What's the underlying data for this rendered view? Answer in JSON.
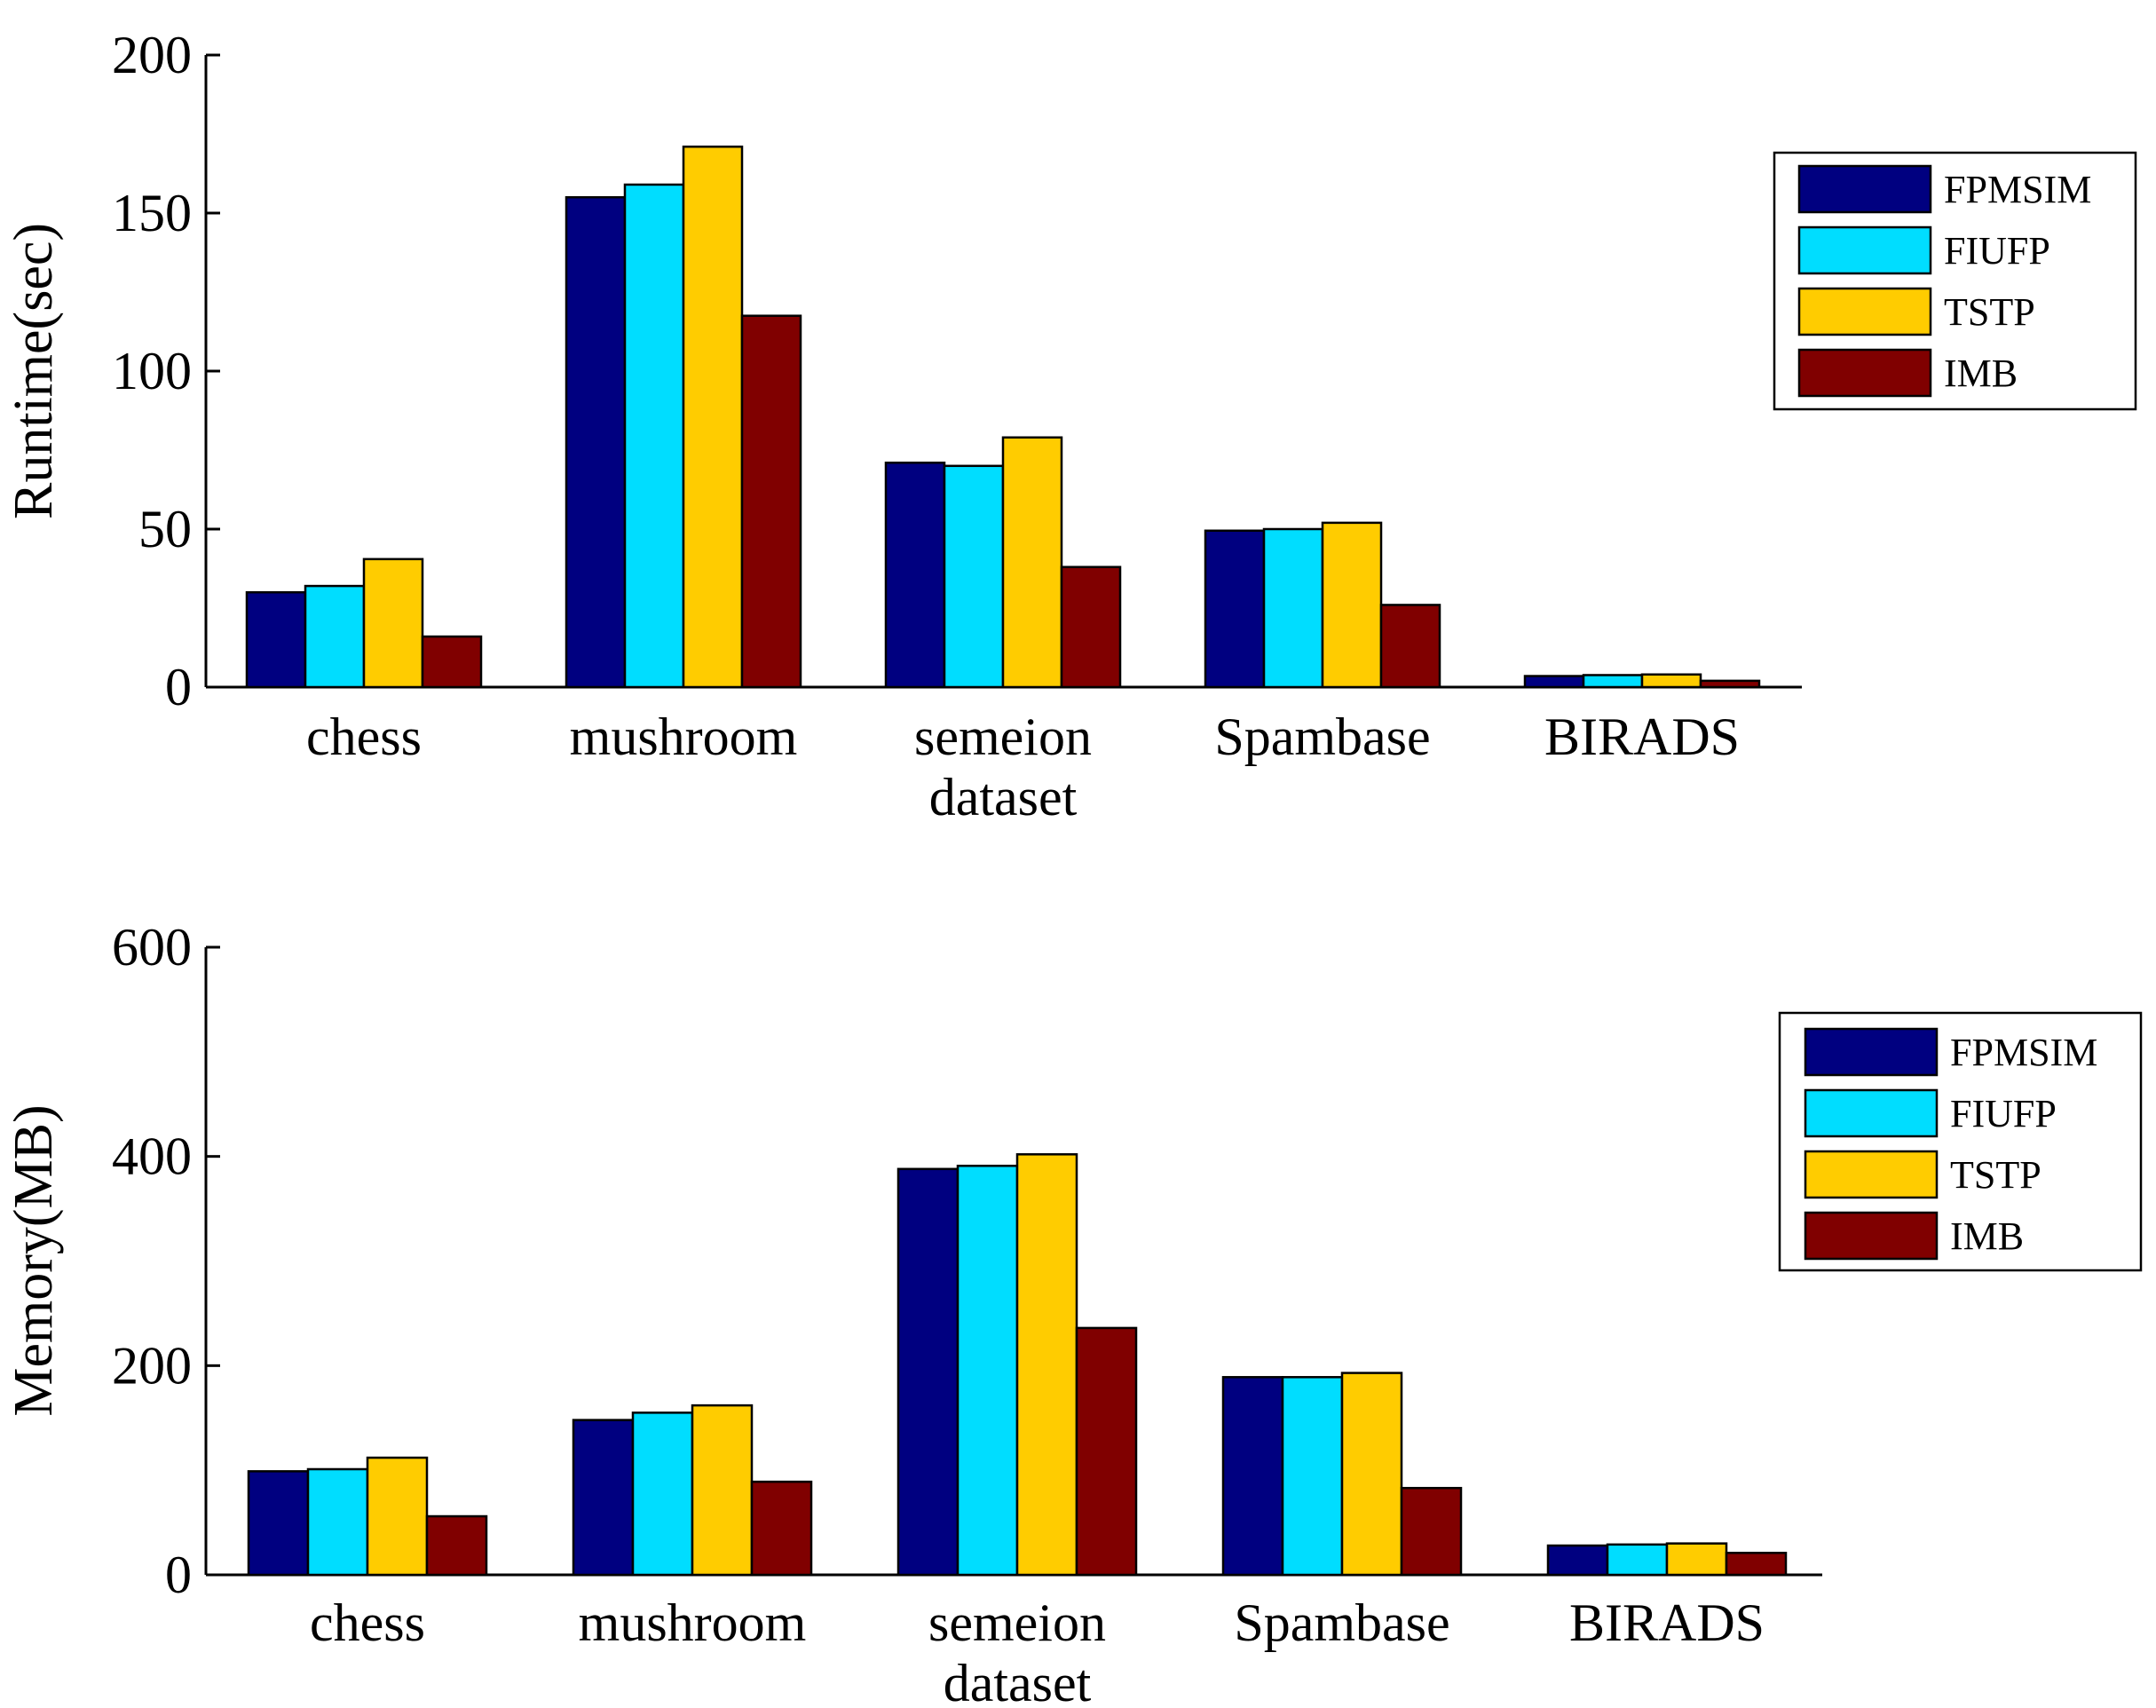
{
  "chart_data": [
    {
      "type": "bar",
      "title": "",
      "xlabel": "",
      "ylabel": "Runtime(sec)",
      "ylim": [
        0,
        200
      ],
      "yticks": [
        0,
        50,
        100,
        150,
        200
      ],
      "categories": [
        "chess",
        "mushroom",
        "semeion\ndataset",
        "Spambase",
        "BIRADS"
      ],
      "legend_position": "top-right",
      "series": [
        {
          "name": "FPMSIM",
          "color": "#000080",
          "values": [
            30,
            155,
            71,
            49.5,
            3.5
          ]
        },
        {
          "name": "FIUFP",
          "color": "#00DDFF",
          "values": [
            32,
            159,
            70,
            50,
            3.8
          ]
        },
        {
          "name": "TSTP",
          "color": "#FFCC00",
          "values": [
            40.5,
            171,
            79,
            52,
            4
          ]
        },
        {
          "name": "IMB",
          "color": "#800000",
          "values": [
            16,
            117.5,
            38,
            26,
            2
          ]
        }
      ]
    },
    {
      "type": "bar",
      "title": "",
      "xlabel": "",
      "ylabel": "Memory(MB)",
      "ylim": [
        0,
        600
      ],
      "yticks": [
        0,
        200,
        400,
        600
      ],
      "categories": [
        "chess",
        "mushroom",
        "semeion\ndataset",
        "Spambase",
        "BIRADS"
      ],
      "legend_position": "top-right",
      "series": [
        {
          "name": "FPMSIM",
          "color": "#000080",
          "values": [
            99,
            148,
            388,
            189,
            28
          ]
        },
        {
          "name": "FIUFP",
          "color": "#00DDFF",
          "values": [
            101,
            155,
            391,
            189,
            29
          ]
        },
        {
          "name": "TSTP",
          "color": "#FFCC00",
          "values": [
            112,
            162,
            402,
            193,
            30
          ]
        },
        {
          "name": "IMB",
          "color": "#800000",
          "values": [
            56,
            89,
            236,
            83,
            21
          ]
        }
      ]
    }
  ]
}
